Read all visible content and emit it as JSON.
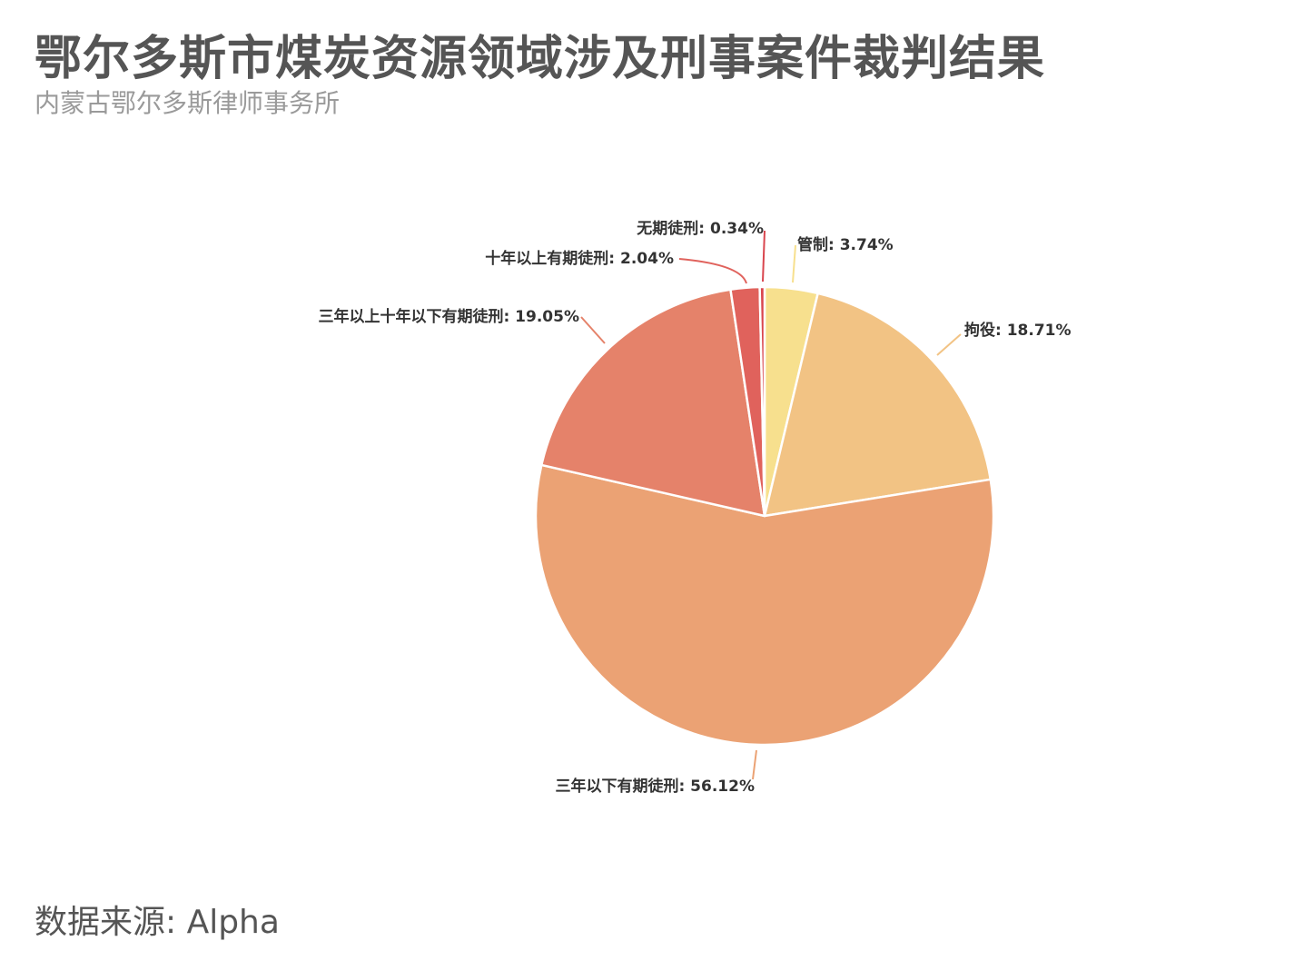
{
  "header": {
    "title": "鄂尔多斯市煤炭资源领域涉及刑事案件裁判结果",
    "subtitle": "内蒙古鄂尔多斯律师事务所"
  },
  "footer": {
    "source": "数据来源: Alpha"
  },
  "chart_data": {
    "type": "pie",
    "start": "top",
    "direction": "clockwise",
    "slices": [
      {
        "label": "管制: 3.74%",
        "name": "管制",
        "value": 3.74,
        "color": "#f7e08e"
      },
      {
        "label": "拘役: 18.71%",
        "name": "拘役",
        "value": 18.71,
        "color": "#f2c384"
      },
      {
        "label": "三年以下有期徒刑: 56.12%",
        "name": "三年以下有期徒刑",
        "value": 56.12,
        "color": "#eba274"
      },
      {
        "label": "三年以上十年以下有期徒刑: 19.05%",
        "name": "三年以上十年以下有期徒刑",
        "value": 19.05,
        "color": "#e5826a"
      },
      {
        "label": "十年以上有期徒刑: 2.04%",
        "name": "十年以上有期徒刑",
        "value": 2.04,
        "color": "#e0625c"
      },
      {
        "label": "无期徒刑: 0.34%",
        "name": "无期徒刑",
        "value": 0.34,
        "color": "#d9464e"
      }
    ]
  }
}
